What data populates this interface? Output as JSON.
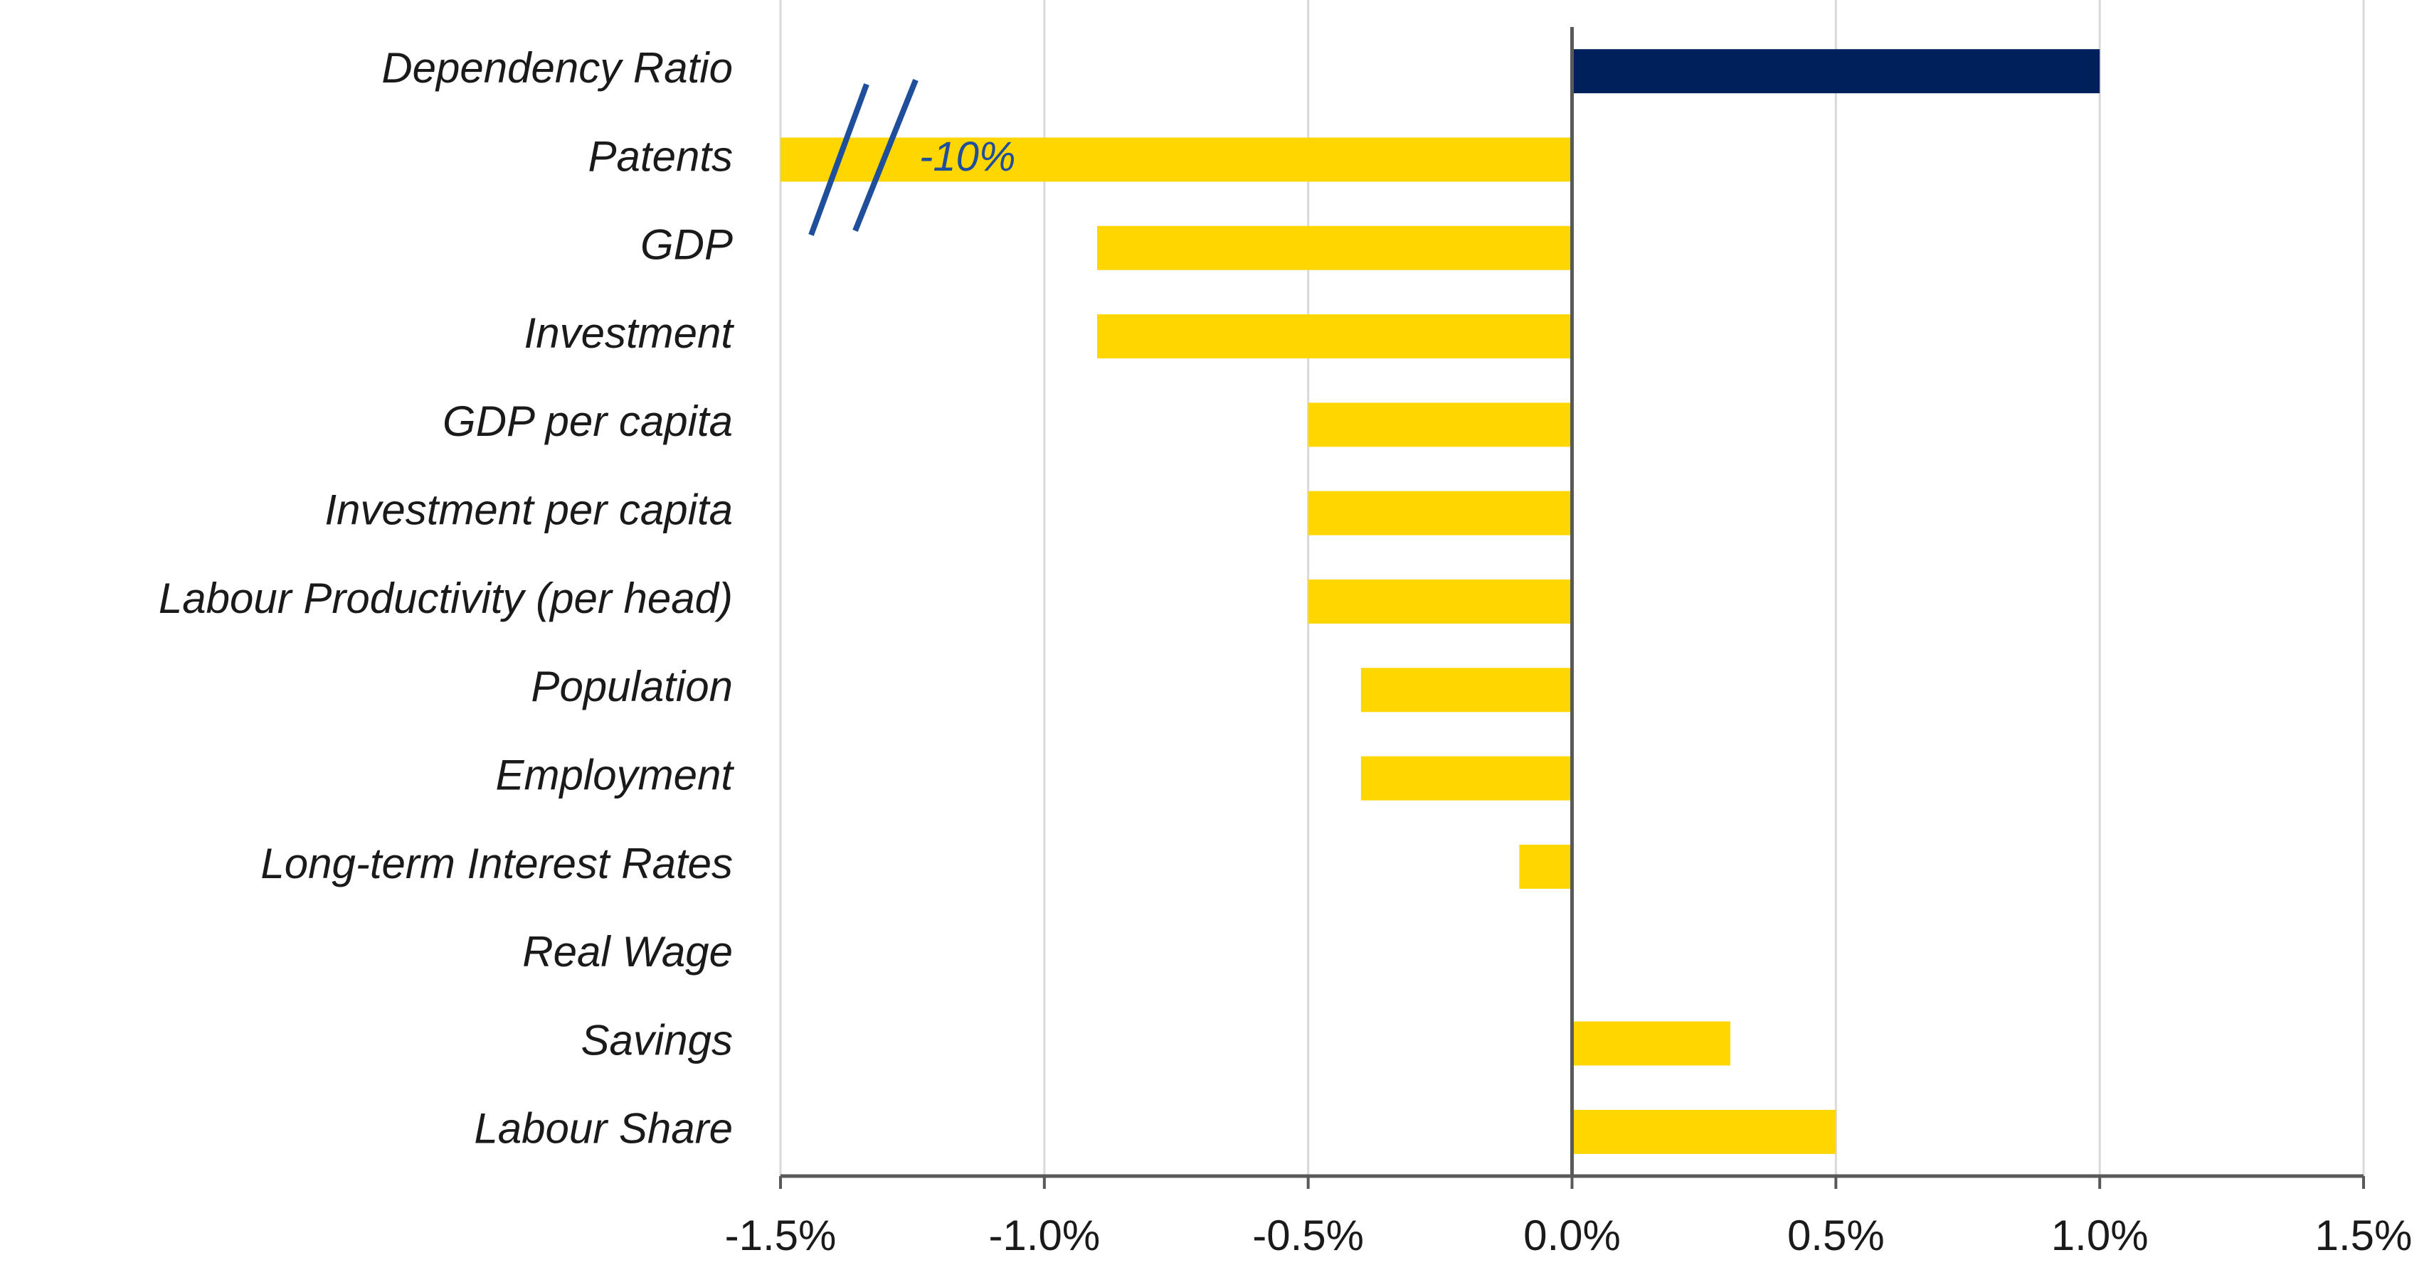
{
  "chart_data": {
    "type": "bar",
    "orientation": "horizontal",
    "categories": [
      "Dependency Ratio",
      "Patents",
      "GDP",
      "Investment",
      "GDP per capita",
      "Investment per capita",
      "Labour Productivity (per head)",
      "Population",
      "Employment",
      "Long-term Interest Rates",
      "Real Wage",
      "Savings",
      "Labour Share"
    ],
    "values": [
      1.0,
      -10.0,
      -0.9,
      -0.9,
      -0.5,
      -0.5,
      -0.5,
      -0.4,
      -0.4,
      -0.1,
      0.0,
      0.3,
      0.5
    ],
    "highlight_index": 0,
    "xlim": [
      -1.5,
      1.5
    ],
    "xticks": [
      -1.5,
      -1.0,
      -0.5,
      0.0,
      0.5,
      1.0,
      1.5
    ],
    "xtick_labels": [
      "-1.5%",
      "-1.0%",
      "-0.5%",
      "0.0%",
      "0.5%",
      "1.0%",
      "1.5%"
    ],
    "title": "",
    "xlabel": "",
    "ylabel": "",
    "grid": "vertical",
    "axis_break": {
      "category": "Patents",
      "label": "-10%"
    },
    "colors": {
      "positive_highlight": "#00205b",
      "bar": "#ffd600",
      "axis": "#595959",
      "grid": "#d9d9d9",
      "break": "#1f4e9a"
    }
  }
}
